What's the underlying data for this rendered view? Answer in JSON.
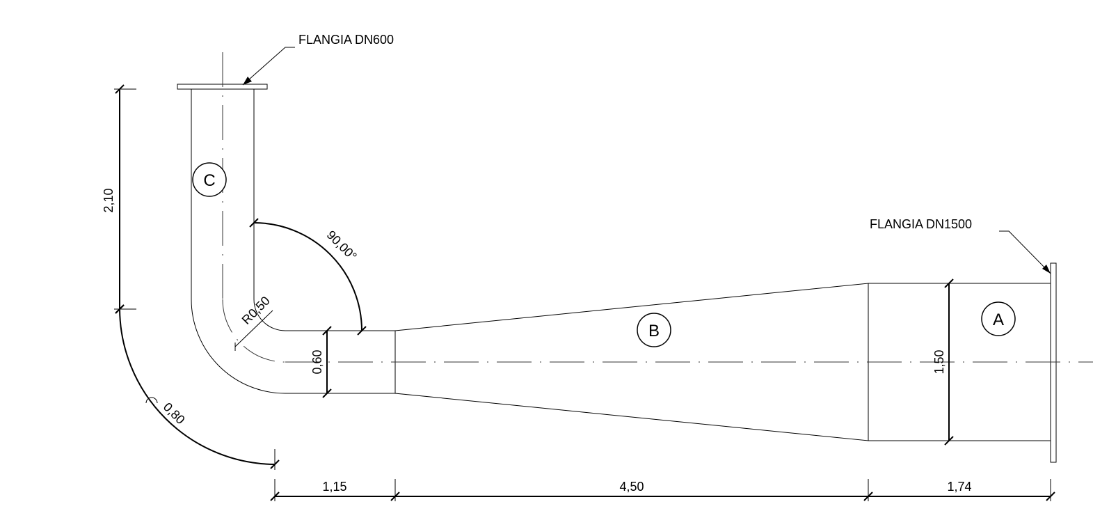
{
  "drawing": {
    "sections": {
      "a": {
        "label": "A",
        "color": "#8fd08f"
      },
      "b": {
        "label": "B",
        "color": "#e05050"
      },
      "c": {
        "label": "C",
        "color": "#3a7fd0"
      }
    },
    "flanges": {
      "top": "FLANGIA DN600",
      "right": "FLANGIA DN1500"
    },
    "dimensions": {
      "vertical_height": "2,10",
      "angle": "90,00°",
      "inner_radius": "R0,50",
      "outer_radius": "0,80",
      "small_diameter": "0,60",
      "large_diameter": "1,50",
      "length_c": "1,15",
      "length_b": "4,50",
      "length_a": "1,74"
    }
  }
}
